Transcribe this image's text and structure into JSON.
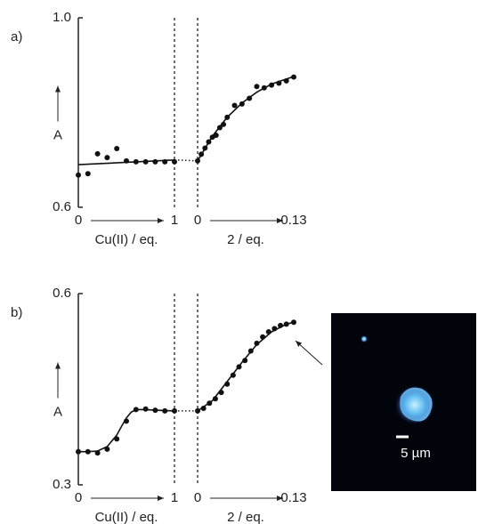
{
  "chart_data": [
    {
      "type": "scatter",
      "panel_label": "a)",
      "ylabel": "A",
      "xlabel": "Cu(II) / eq.",
      "xlim": [
        0,
        1
      ],
      "xticks": [
        0,
        1
      ],
      "ylim": [
        0.6,
        1.0
      ],
      "yticks": [
        {
          "value": 1.0,
          "label": "1.0"
        },
        0.6
      ],
      "series": [
        {
          "mode": "markers",
          "color": "#111111",
          "x": [
            0,
            0.1,
            0.2,
            0.3,
            0.4,
            0.5,
            0.6,
            0.7,
            0.8,
            0.9,
            1.0
          ],
          "values": [
            0.668,
            0.671,
            0.713,
            0.705,
            0.724,
            0.698,
            0.696,
            0.696,
            0.696,
            0.696,
            0.696
          ]
        },
        {
          "mode": "line",
          "color": "#111111",
          "x": [
            0,
            1
          ],
          "values": [
            0.69,
            0.7
          ]
        }
      ]
    },
    {
      "type": "scatter",
      "xlabel": "2 / eq.",
      "xlim": [
        0,
        0.13
      ],
      "xticks": [
        0,
        0.13
      ],
      "ylim": [
        0.6,
        1.0
      ],
      "series": [
        {
          "mode": "markers",
          "color": "#111111",
          "x": [
            0,
            0.005,
            0.01,
            0.015,
            0.02,
            0.025,
            0.03,
            0.035,
            0.04,
            0.05,
            0.06,
            0.07,
            0.08,
            0.09,
            0.1,
            0.11,
            0.12,
            0.13
          ],
          "values": [
            0.698,
            0.712,
            0.725,
            0.738,
            0.748,
            0.752,
            0.768,
            0.775,
            0.79,
            0.815,
            0.818,
            0.83,
            0.855,
            0.852,
            0.858,
            0.862,
            0.867,
            0.875
          ]
        },
        {
          "mode": "line",
          "color": "#111111",
          "x": [
            0,
            0.02,
            0.04,
            0.06,
            0.08,
            0.1,
            0.13
          ],
          "values": [
            0.698,
            0.75,
            0.79,
            0.82,
            0.843,
            0.86,
            0.876
          ]
        }
      ]
    },
    {
      "type": "scatter",
      "panel_label": "b)",
      "ylabel": "A",
      "xlabel": "Cu(II) / eq.",
      "xlim": [
        0,
        1
      ],
      "xticks": [
        0,
        1
      ],
      "ylim": [
        0.3,
        0.6
      ],
      "yticks": [
        0.6,
        0.3
      ],
      "series": [
        {
          "mode": "markers",
          "color": "#111111",
          "x": [
            0,
            0.1,
            0.2,
            0.3,
            0.4,
            0.5,
            0.6,
            0.7,
            0.8,
            0.9,
            1.0
          ],
          "values": [
            0.352,
            0.352,
            0.35,
            0.356,
            0.372,
            0.4,
            0.418,
            0.419,
            0.417,
            0.416,
            0.416
          ]
        },
        {
          "mode": "line",
          "color": "#111111",
          "x": [
            0,
            0.1,
            0.2,
            0.3,
            0.4,
            0.45,
            0.5,
            0.55,
            0.6,
            0.7,
            0.8,
            1.0
          ],
          "values": [
            0.352,
            0.352,
            0.353,
            0.36,
            0.378,
            0.392,
            0.405,
            0.414,
            0.418,
            0.418,
            0.417,
            0.416
          ]
        }
      ]
    },
    {
      "type": "scatter",
      "xlabel": "2 / eq.",
      "xlim": [
        0,
        0.13
      ],
      "xticks": [
        0,
        0.13
      ],
      "ylim": [
        0.3,
        0.6
      ],
      "series": [
        {
          "mode": "markers",
          "color": "#111111",
          "x": [
            0,
            0.008,
            0.016,
            0.024,
            0.032,
            0.04,
            0.048,
            0.056,
            0.064,
            0.072,
            0.08,
            0.088,
            0.096,
            0.104,
            0.112,
            0.12,
            0.13
          ],
          "values": [
            0.416,
            0.42,
            0.428,
            0.435,
            0.445,
            0.458,
            0.472,
            0.485,
            0.495,
            0.51,
            0.522,
            0.532,
            0.54,
            0.545,
            0.55,
            0.552,
            0.555
          ]
        },
        {
          "mode": "line",
          "color": "#111111",
          "x": [
            0,
            0.02,
            0.04,
            0.06,
            0.08,
            0.1,
            0.12,
            0.13
          ],
          "values": [
            0.416,
            0.432,
            0.462,
            0.492,
            0.52,
            0.54,
            0.552,
            0.555
          ]
        }
      ]
    }
  ],
  "image": {
    "scale_label": "5 µm"
  }
}
